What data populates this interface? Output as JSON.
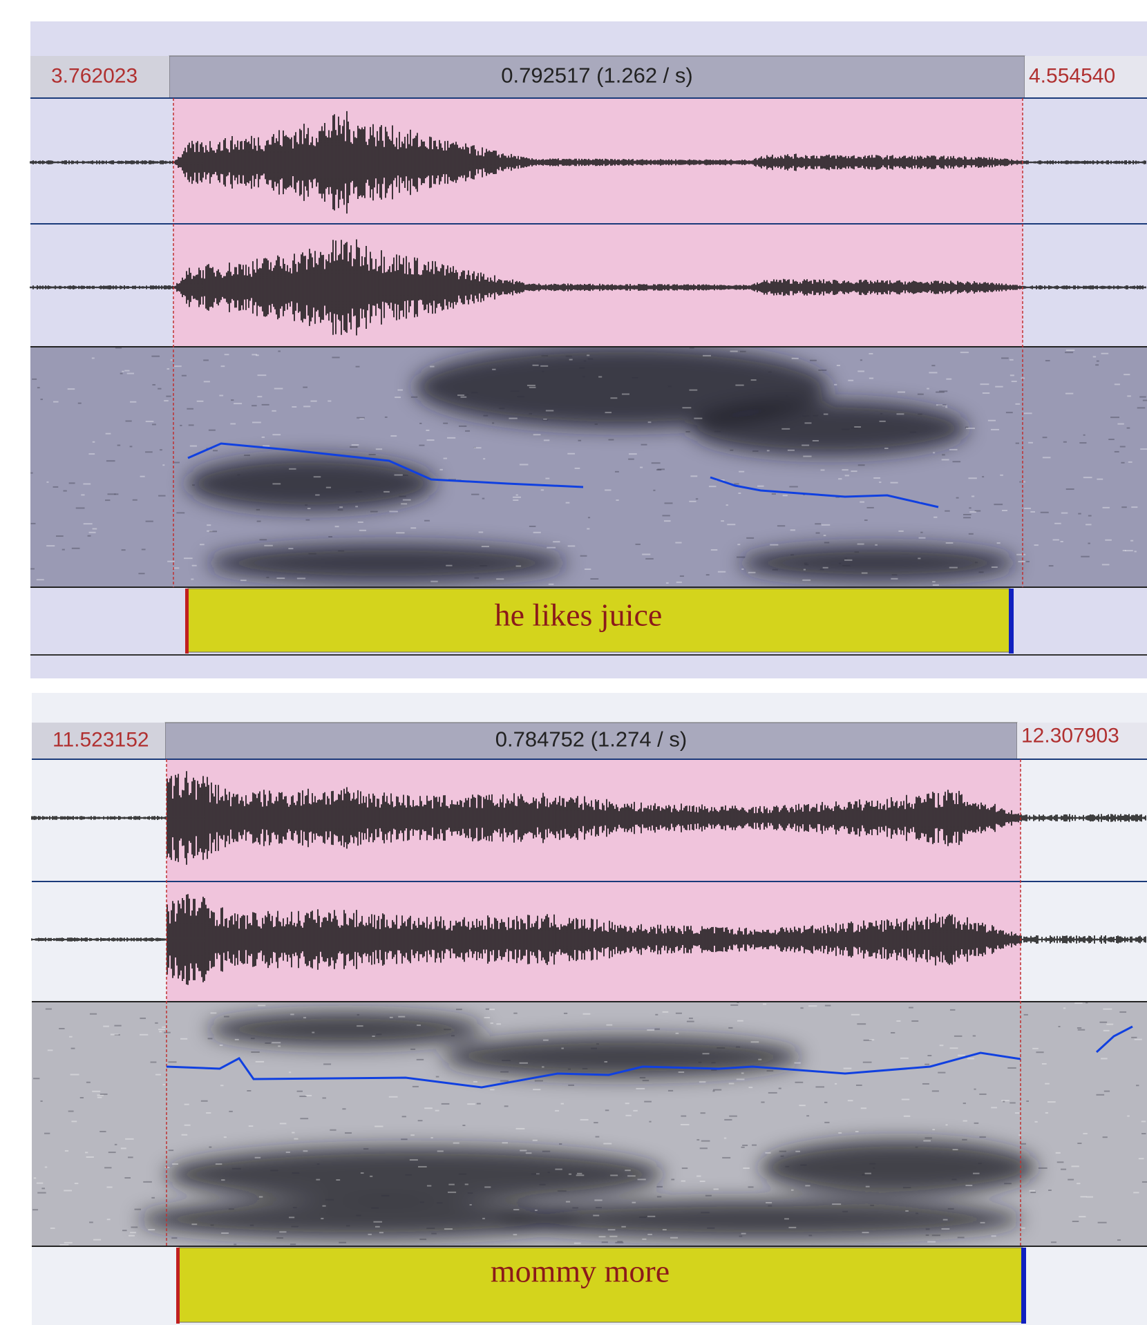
{
  "panels": [
    {
      "start_time": "3.762023",
      "selection_duration": "0.792517 (1.262 / s)",
      "end_time": "4.554540",
      "interval_label": "he likes juice"
    },
    {
      "start_time": "11.523152",
      "selection_duration": "0.784752 (1.274 / s)",
      "end_time": "12.307903",
      "interval_label": "mommy more"
    }
  ]
}
